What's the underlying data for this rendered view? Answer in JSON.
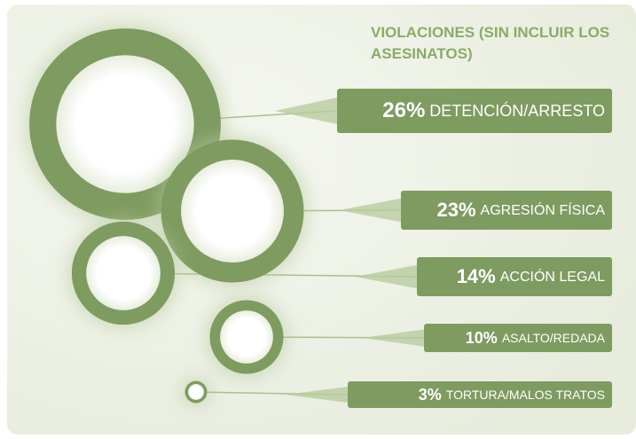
{
  "chart_data": {
    "type": "bubble",
    "title": "VIOLACIONES (SIN INCLUIR LOS ASESINATOS)",
    "categories": [
      "DETENCIÓN/ARRESTO",
      "AGRESIÓN FÍSICA",
      "ACCIÓN LEGAL",
      "ASALTO/REDADA",
      "TORTURA/MALOS TRATOS"
    ],
    "values": [
      26,
      23,
      14,
      10,
      3
    ],
    "value_labels": [
      "26%",
      "23%",
      "14%",
      "10%",
      "3%"
    ],
    "color": "#7e9b60"
  }
}
